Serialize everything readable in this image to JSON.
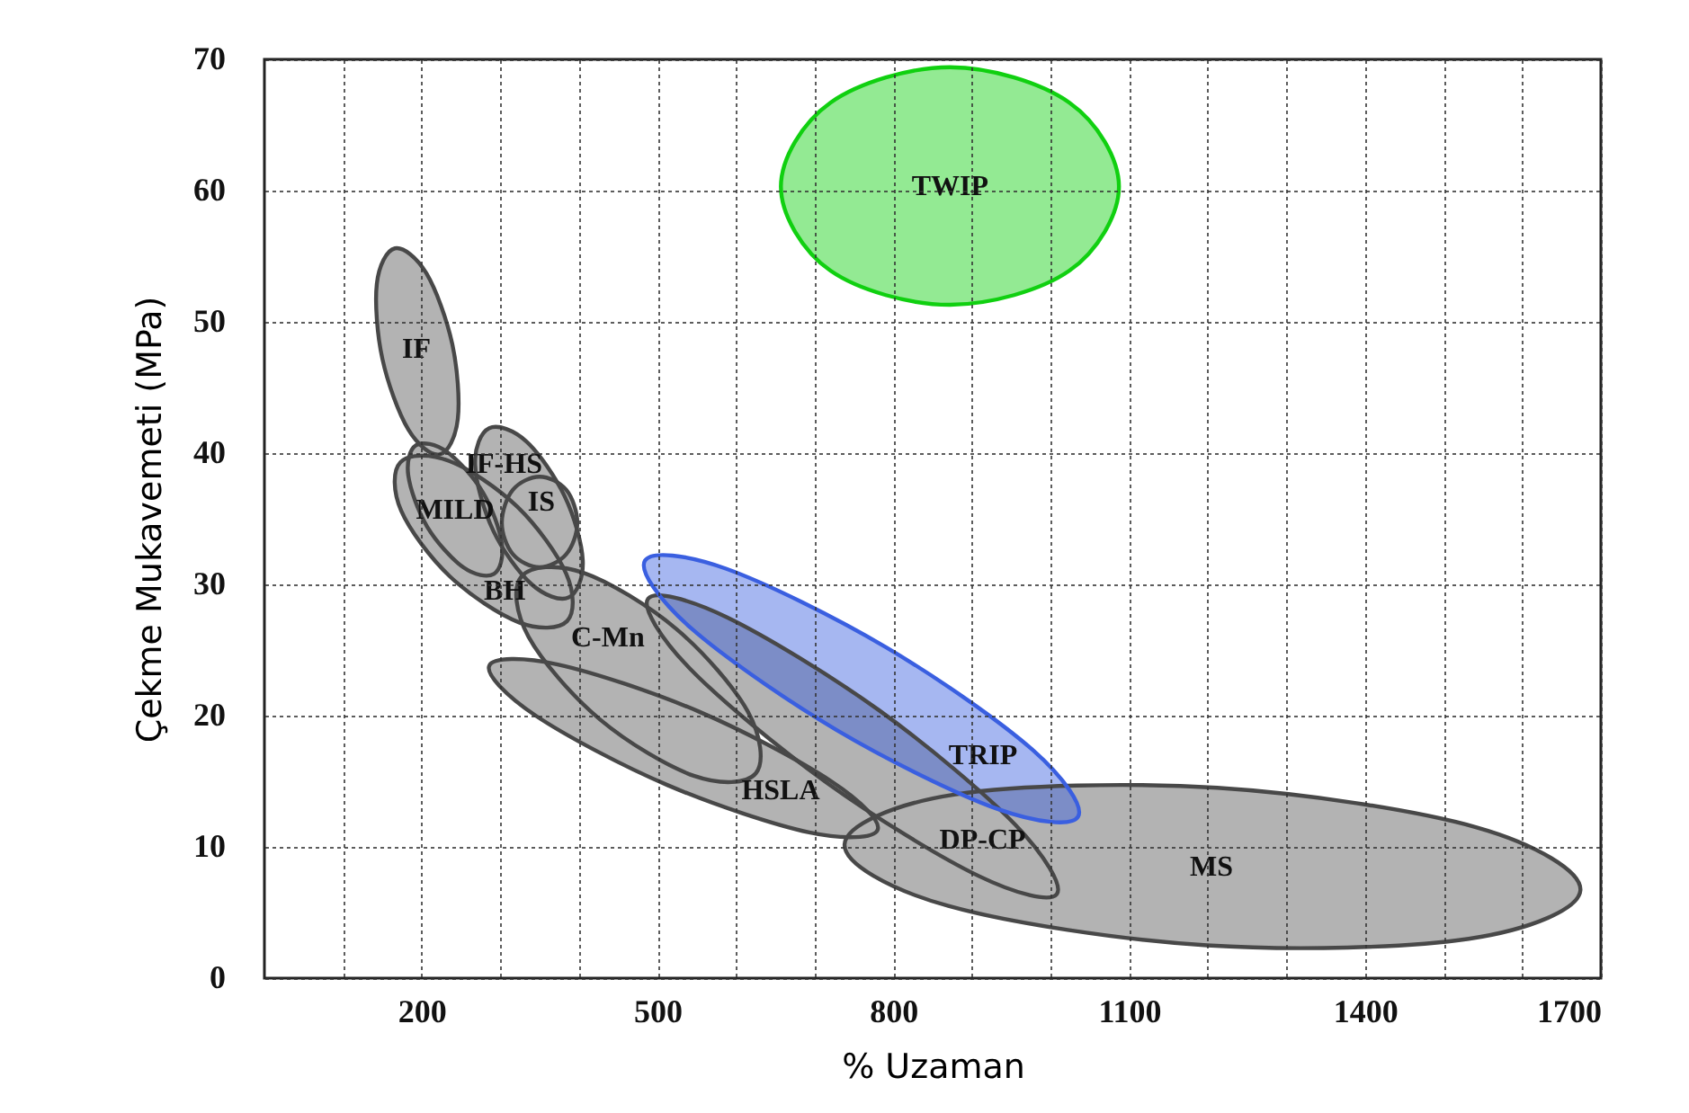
{
  "chart_data": {
    "type": "area",
    "xlabel": "% Uzaman",
    "ylabel": "Çekme Mukavemeti (MPa)",
    "xlim": [
      0,
      1700
    ],
    "ylim": [
      0,
      70
    ],
    "xticks": [
      {
        "value": 100,
        "label": null
      },
      200,
      {
        "value": 300,
        "label": null
      },
      {
        "value": 400,
        "label": null
      },
      500,
      {
        "value": 600,
        "label": null
      },
      {
        "value": 700,
        "label": null
      },
      800,
      {
        "value": 900,
        "label": null
      },
      {
        "value": 1000,
        "label": null
      },
      1100,
      {
        "value": 1200,
        "label": null
      },
      {
        "value": 1300,
        "label": null
      },
      1400,
      {
        "value": 1500,
        "label": null
      },
      {
        "value": 1600,
        "label": null
      },
      1700
    ],
    "yticks": [
      0,
      10,
      20,
      30,
      40,
      50,
      60,
      70
    ],
    "grid": true,
    "series": [
      {
        "name": "MS",
        "color": "#b3b3b3",
        "x": [
          1674,
          1532,
          1199,
          870,
          738,
          879,
          1212,
          1541
        ],
        "values": [
          6.7,
          3.0,
          2.5,
          5.5,
          10.2,
          14.0,
          14.5,
          11.5
        ]
      },
      {
        "name": "DP-CP",
        "color": "#b3b3b3",
        "x": [
          1008,
          908,
          715,
          541,
          488,
          588,
          782,
          955
        ],
        "values": [
          6.4,
          7.8,
          14.9,
          23.6,
          28.9,
          27.5,
          20.4,
          11.7
        ]
      },
      {
        "name": "HSLA",
        "color": "#b3b3b3",
        "x": [
          780,
          693,
          513,
          345,
          286,
          373,
          553,
          721
        ],
        "values": [
          11.3,
          11.1,
          14.7,
          20.0,
          23.8,
          23.9,
          20.3,
          15.0
        ]
      },
      {
        "name": "C-Mn",
        "color": "#b3b3b3",
        "x": [
          625,
          547,
          427,
          336,
          327,
          405,
          524,
          615
        ],
        "values": [
          15.6,
          15.4,
          19.7,
          26.0,
          30.6,
          30.9,
          26.6,
          20.3
        ]
      },
      {
        "name": "BH",
        "color": "#b3b3b3",
        "x": [
          385,
          324,
          236,
          174,
          173,
          235,
          322,
          384
        ],
        "values": [
          27.2,
          27.1,
          30.6,
          35.6,
          39.3,
          39.4,
          35.9,
          30.8
        ]
      },
      {
        "name": "IF-HS",
        "color": "#b3b3b3",
        "x": [
          387,
          340,
          291,
          268,
          286,
          333,
          382,
          405
        ],
        "values": [
          29.0,
          30.0,
          34.1,
          39.1,
          41.9,
          40.9,
          36.7,
          31.8
        ]
      },
      {
        "name": "MILD",
        "color": "#b3b3b3",
        "x": [
          292,
          253,
          207,
          183,
          193,
          232,
          278,
          302
        ],
        "values": [
          30.8,
          31.3,
          34.4,
          38.3,
          40.6,
          40.1,
          37.0,
          33.1
        ]
      },
      {
        "name": "IS",
        "color": "#b3b3b3",
        "x": [
          398,
          384,
          350,
          316,
          302,
          316,
          350,
          384
        ],
        "values": [
          34.7,
          32.3,
          31.3,
          32.3,
          34.7,
          37.2,
          38.2,
          37.2
        ]
      },
      {
        "name": "IF",
        "color": "#b3b3b3",
        "x": [
          223,
          183,
          150,
          143,
          166,
          206,
          239,
          246
        ],
        "values": [
          39.9,
          41.8,
          47.2,
          52.9,
          55.6,
          53.7,
          48.3,
          42.6
        ]
      },
      {
        "name": "TRIP",
        "color": "#3a5fe0",
        "x": [
          1035,
          932,
          728,
          542,
          484,
          587,
          791,
          977
        ],
        "values": [
          12.3,
          12.9,
          18.9,
          26.7,
          31.8,
          31.2,
          25.2,
          17.4
        ]
      },
      {
        "name": "TWIP",
        "color": "#10d010",
        "x": [
          1087,
          1024,
          872,
          720,
          657,
          720,
          872,
          1024
        ],
        "values": [
          60.3,
          53.9,
          51.3,
          53.9,
          60.3,
          66.7,
          69.4,
          66.7
        ]
      }
    ]
  }
}
